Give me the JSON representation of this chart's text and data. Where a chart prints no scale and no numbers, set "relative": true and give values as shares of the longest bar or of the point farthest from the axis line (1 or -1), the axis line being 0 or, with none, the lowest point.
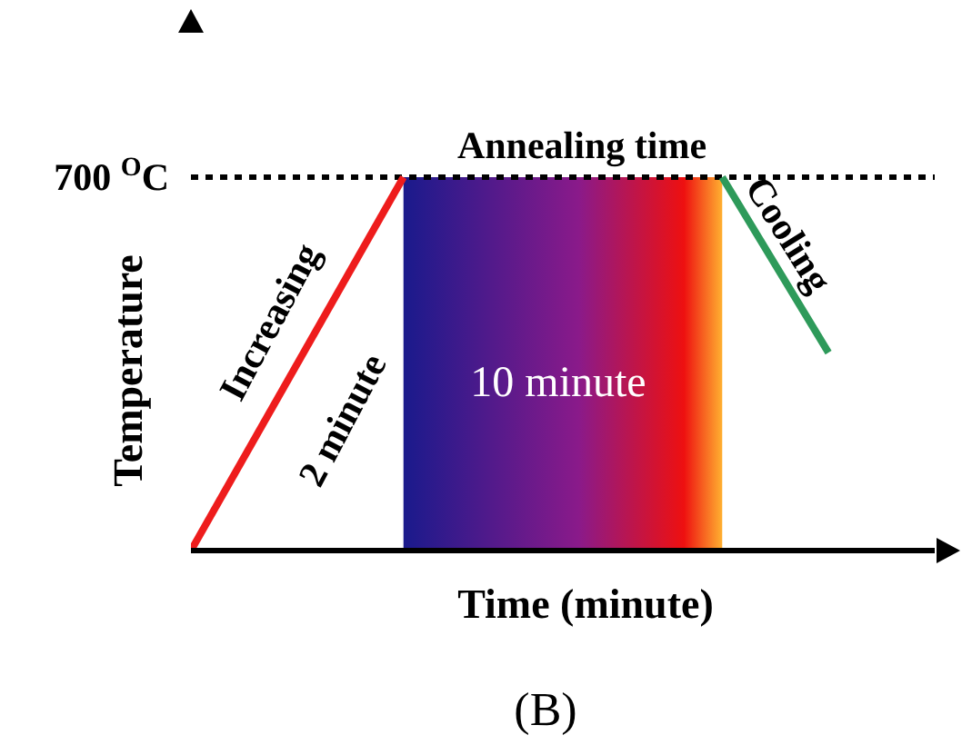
{
  "chart_data": {
    "type": "line",
    "relative": true,
    "xlabel": "Time (minute)",
    "ylabel": "Temperature",
    "categories": [
      null,
      null,
      null,
      null,
      null,
      null,
      null,
      null
    ],
    "series": [
      {
        "type": "line",
        "color": "#ee1c1c",
        "values": [
          0,
          null,
          1,
          null,
          null,
          null,
          null,
          null
        ]
      },
      {
        "type": "area",
        "color": "#8a1a8a",
        "values": [
          null,
          null,
          1,
          1,
          1,
          1,
          null,
          null
        ]
      },
      {
        "type": "line",
        "color": "#2e9a5a",
        "values": [
          null,
          null,
          null,
          null,
          null,
          1,
          0.53,
          null
        ]
      }
    ],
    "ref_lines": [
      {
        "axis": "y",
        "value": 1,
        "label": "700 $^{O}$C",
        "line_style": "dotted",
        "color": "#000000"
      }
    ],
    "annotations": [
      "Annealing time",
      "Increasing",
      "2 minute",
      "Cooling",
      "10 minute",
      "(B)"
    ],
    "marker": "none",
    "line_style": "solid"
  }
}
